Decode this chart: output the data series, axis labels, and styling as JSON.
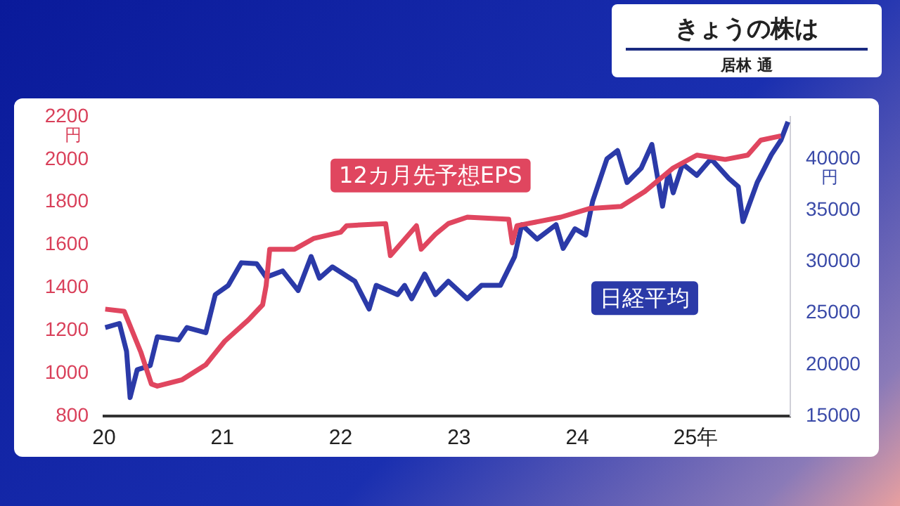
{
  "chart_data": {
    "type": "line",
    "title": "きょうの株は",
    "subtitle": "居林 通",
    "ylabel": "円",
    "y2label": "円",
    "xlim": [
      20,
      25.8
    ],
    "xticks": [
      20,
      21,
      22,
      23,
      24,
      {
        "value": 25,
        "label": "25年"
      }
    ],
    "ylim": [
      800,
      2200
    ],
    "yticks": [
      800,
      1000,
      1200,
      1400,
      1600,
      1800,
      2000,
      2200
    ],
    "y2lim": [
      15000,
      44100
    ],
    "y2ticks": [
      15000,
      20000,
      25000,
      30000,
      35000,
      40000
    ],
    "grid": false,
    "legend": false,
    "marker": "none",
    "line_style": "solid",
    "series": [
      {
        "name": "12カ月先予想EPS",
        "color": "#e0465f",
        "x": [
          20.01,
          20.17,
          20.31,
          20.4,
          20.45,
          20.66,
          20.86,
          21.02,
          21.22,
          21.34,
          21.37,
          21.4,
          21.61,
          21.77,
          22,
          22.05,
          22.38,
          22.42,
          22.64,
          22.68,
          22.8,
          22.91,
          23.07,
          23.42,
          23.45,
          23.49,
          23.86,
          24.1,
          24.37,
          24.57,
          24.81,
          25.01,
          25.25,
          25.44,
          25.55,
          25.72
        ],
        "values": [
          1300,
          1290,
          1100,
          950,
          940,
          970,
          1040,
          1150,
          1250,
          1320,
          1410,
          1580,
          1580,
          1630,
          1660,
          1690,
          1700,
          1550,
          1690,
          1580,
          1650,
          1700,
          1730,
          1720,
          1610,
          1690,
          1730,
          1770,
          1780,
          1850,
          1960,
          2020,
          2000,
          2020,
          2090,
          2110
        ]
      },
      {
        "name": "日経平均",
        "color": "#2b3aa8",
        "axis": "y2",
        "x": [
          20.01,
          20.13,
          20.19,
          20.22,
          20.28,
          20.39,
          20.45,
          20.63,
          20.7,
          20.86,
          20.94,
          21.05,
          21.16,
          21.29,
          21.37,
          21.51,
          21.64,
          21.75,
          21.82,
          21.93,
          22.12,
          22.24,
          22.3,
          22.48,
          22.54,
          22.6,
          22.71,
          22.8,
          22.91,
          23.07,
          23.19,
          23.35,
          23.47,
          23.53,
          23.66,
          23.82,
          23.88,
          23.98,
          24.07,
          24.13,
          24.25,
          24.34,
          24.42,
          24.54,
          24.63,
          24.72,
          24.77,
          24.81,
          24.89,
          25.01,
          25.13,
          25.28,
          25.36,
          25.4,
          25.52,
          25.64,
          25.72,
          25.78
        ],
        "values": [
          23600,
          24000,
          21300,
          16800,
          19500,
          19900,
          22700,
          22400,
          23600,
          23100,
          26800,
          27700,
          29900,
          29800,
          28500,
          29100,
          27200,
          30500,
          28400,
          29500,
          28100,
          25400,
          27700,
          26800,
          27700,
          26400,
          28800,
          26800,
          28100,
          26400,
          27700,
          27700,
          30500,
          33600,
          32200,
          33600,
          31300,
          33200,
          32600,
          35900,
          40000,
          40800,
          37700,
          39100,
          41400,
          35400,
          38700,
          36700,
          39500,
          38400,
          40000,
          38100,
          37300,
          33900,
          37700,
          40400,
          41800,
          43600
        ]
      }
    ]
  }
}
